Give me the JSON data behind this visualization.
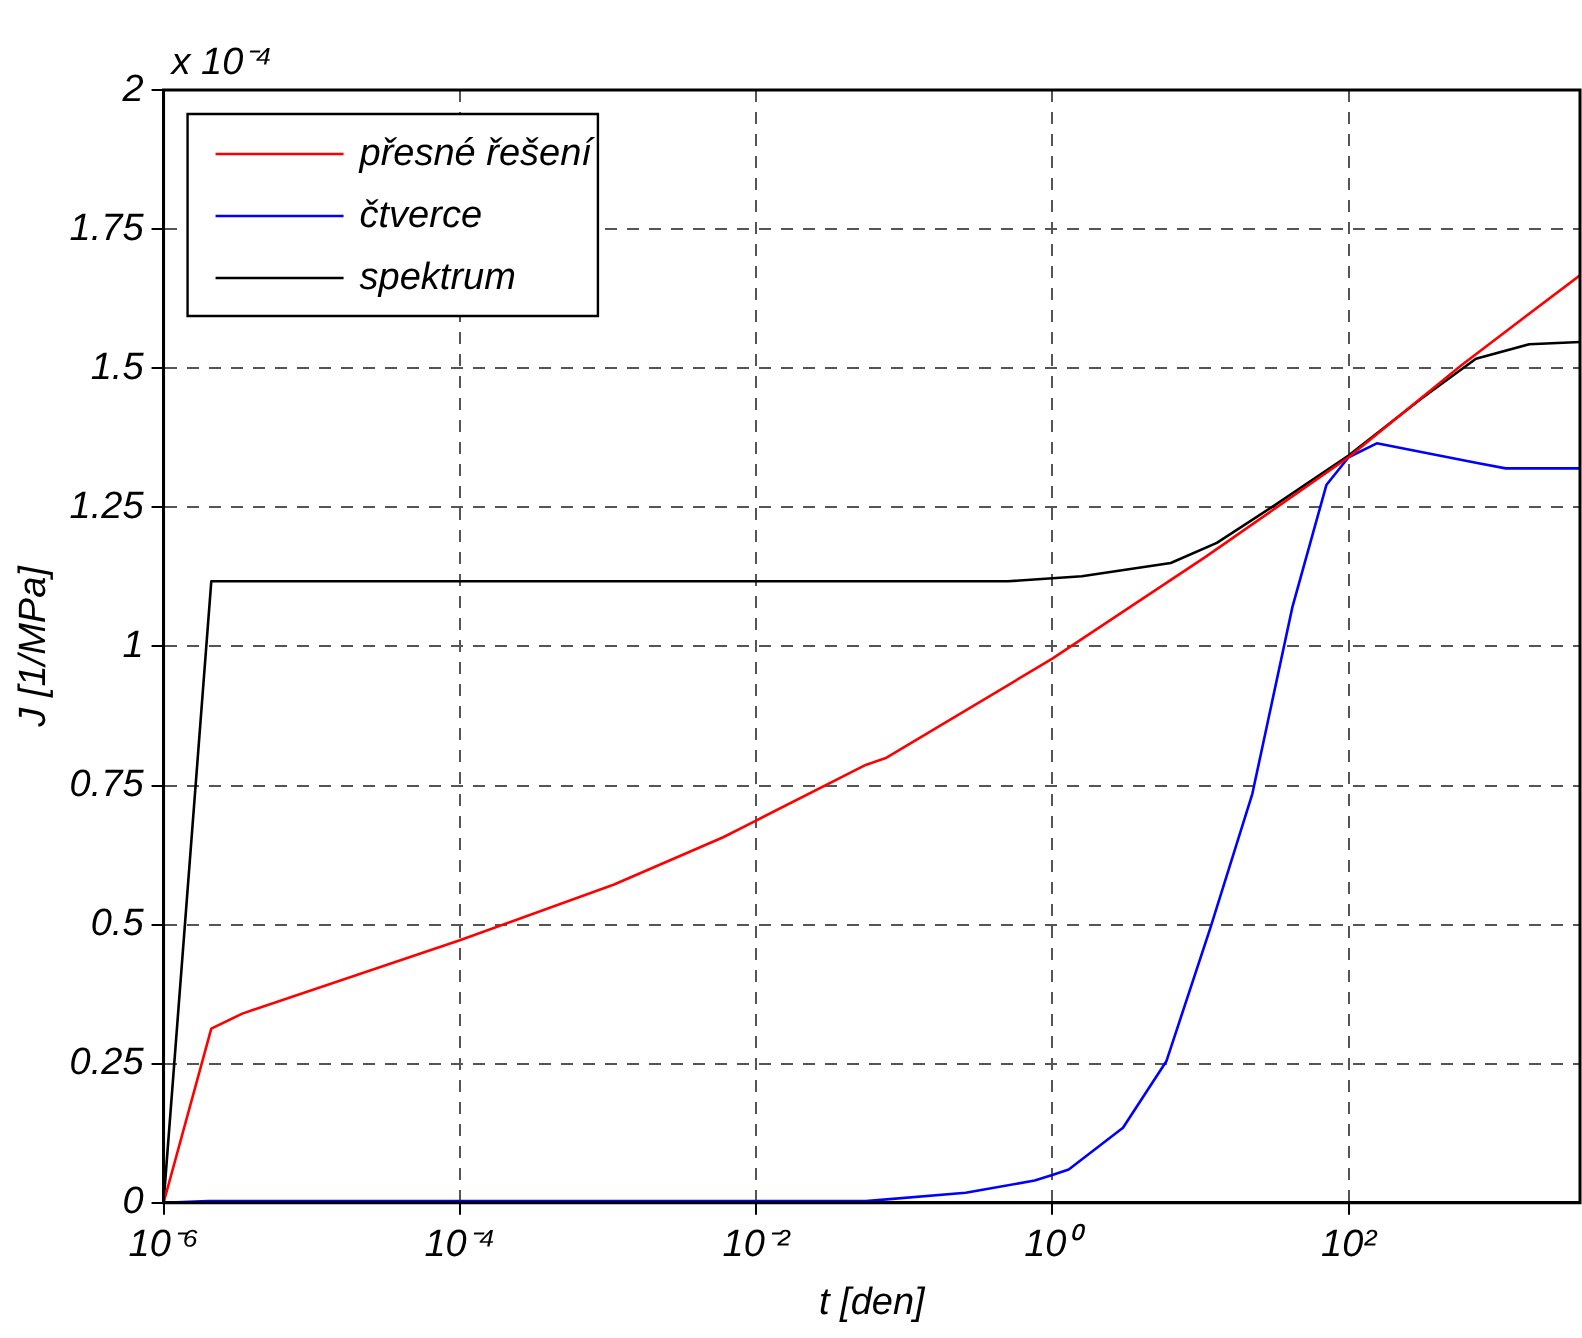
{
  "chart_data": {
    "type": "line",
    "xlabel": "t [den]",
    "ylabel": "J [1/MPa]",
    "annotations": [
      "x 10⁻⁴"
    ],
    "log": "x",
    "grid": true,
    "legend": "top left",
    "xlim": [
      1e-06,
      3650
    ],
    "xticks": [
      {
        "value": 1e-06,
        "label": "10⁻⁶"
      },
      {
        "value": 0.0001,
        "label": "10⁻⁴"
      },
      {
        "value": 0.01,
        "label": "10⁻²"
      },
      {
        "value": 1,
        "label": "10⁰"
      },
      {
        "value": 100,
        "label": "10²"
      }
    ],
    "ylim": [
      0,
      2
    ],
    "yticks": [
      0,
      0.25,
      0.5,
      0.75,
      1,
      1.25,
      1.5,
      1.75,
      2
    ],
    "line_style": "solid",
    "marker": "none",
    "series": [
      {
        "name": "přesné řešení",
        "color": "#ff0000",
        "x": [
          1e-06,
          2.1e-06,
          3.4e-06,
          0.0001,
          0.0011,
          0.006,
          0.01,
          0.055,
          0.076,
          1,
          10.7,
          100,
          575,
          3650
        ],
        "values": [
          0,
          0.313,
          0.34,
          0.472,
          0.572,
          0.657,
          0.687,
          0.787,
          0.8,
          0.978,
          1.16,
          1.34,
          1.505,
          1.667
        ]
      },
      {
        "name": "čtverce",
        "color": "#0000ff",
        "x": [
          1e-06,
          2e-06,
          0.055,
          0.26,
          0.76,
          1,
          1.29,
          3,
          5.9,
          11.7,
          22.4,
          41.7,
          70.8,
          100,
          155,
          724,
          1150,
          3650
        ],
        "values": [
          0,
          0.003,
          0.003,
          0.018,
          0.04,
          0.05,
          0.06,
          0.135,
          0.255,
          0.495,
          0.735,
          1.07,
          1.29,
          1.34,
          1.365,
          1.33,
          1.32,
          1.32
        ]
      },
      {
        "name": "spektrum",
        "color": "#000000",
        "x": [
          1e-06,
          2.1e-06,
          0.5,
          1.58,
          6.3,
          12.9,
          30.2,
          100,
          309,
          724,
          1660,
          3650
        ],
        "values": [
          0,
          1.117,
          1.117,
          1.126,
          1.15,
          1.186,
          1.25,
          1.343,
          1.445,
          1.517,
          1.543,
          1.547
        ]
      }
    ]
  }
}
